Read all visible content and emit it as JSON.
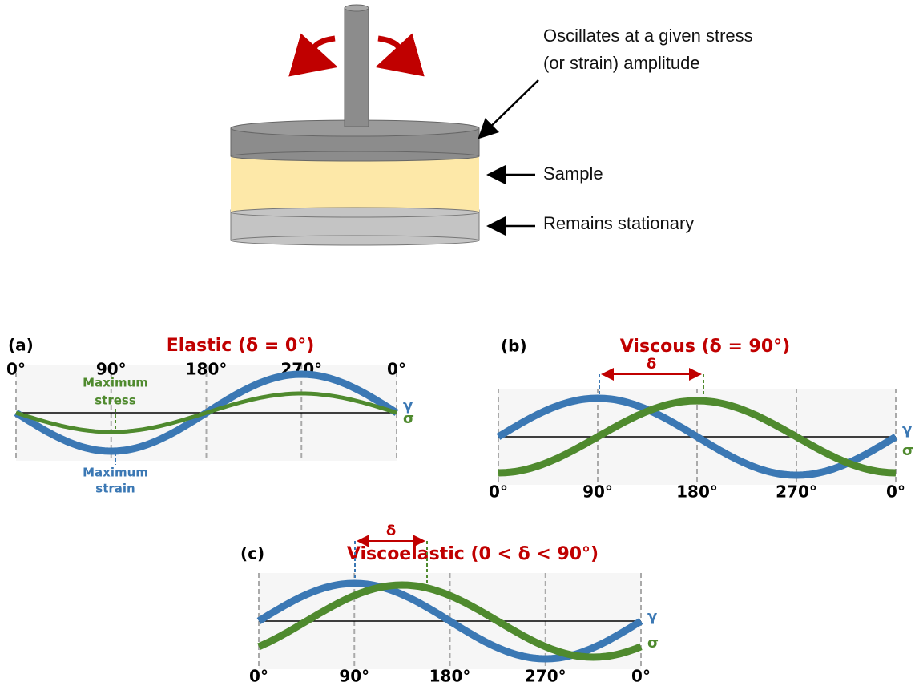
{
  "rheometer": {
    "labels": [
      "Oscillates at a given stress",
      "(or strain) amplitude",
      "Sample",
      "Remains stationary"
    ]
  },
  "panels": [
    {
      "label": "(a)",
      "title": "Elastic (δ = 0°)",
      "angles": [
        "0°",
        "90°",
        "180°",
        "270°",
        "0°"
      ],
      "stress_note": [
        "Maximum",
        "stress"
      ],
      "strain_note": [
        "Maximum",
        "strain"
      ],
      "strain_symbol": "γ",
      "stress_symbol": "σ"
    },
    {
      "label": "(b)",
      "title": "Viscous (δ = 90°)",
      "angles": [
        "0°",
        "90°",
        "180°",
        "270°",
        "0°"
      ],
      "delta": "δ",
      "strain_symbol": "γ",
      "stress_symbol": "σ"
    },
    {
      "label": "(c)",
      "title": "Viscoelastic (0 < δ < 90°)",
      "angles": [
        "0°",
        "90°",
        "180°",
        "270°",
        "0°"
      ],
      "delta": "δ",
      "strain_symbol": "γ",
      "stress_symbol": "σ"
    }
  ]
}
